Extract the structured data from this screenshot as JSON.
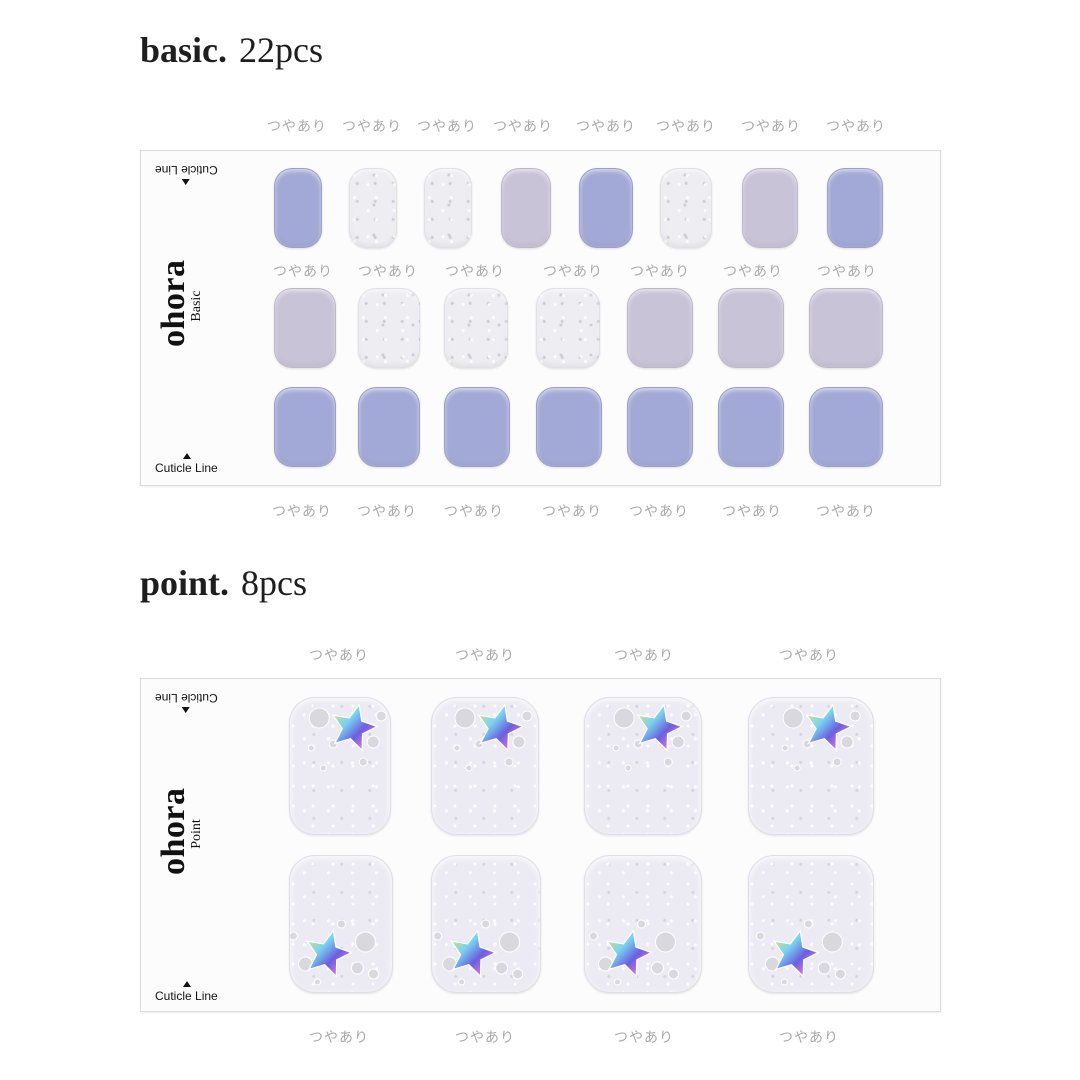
{
  "basic": {
    "title_bold": "basic.",
    "title_count": "22pcs",
    "label_text": "つやあり",
    "brand_name": "ohora",
    "brand_line": "Basic",
    "cuticle_label": "Cuticle Line",
    "colors": {
      "lavender_blue": "#a3a9d6",
      "clear_white": "#eeedf2",
      "lilac_grey": "#c8c3d6"
    }
  },
  "point": {
    "title_bold": "point.",
    "title_count": "8pcs",
    "label_text": "つやあり",
    "brand_name": "ohora",
    "brand_line": "Point",
    "cuticle_label": "Cuticle Line",
    "decoration": "iridescent-star-icon"
  }
}
